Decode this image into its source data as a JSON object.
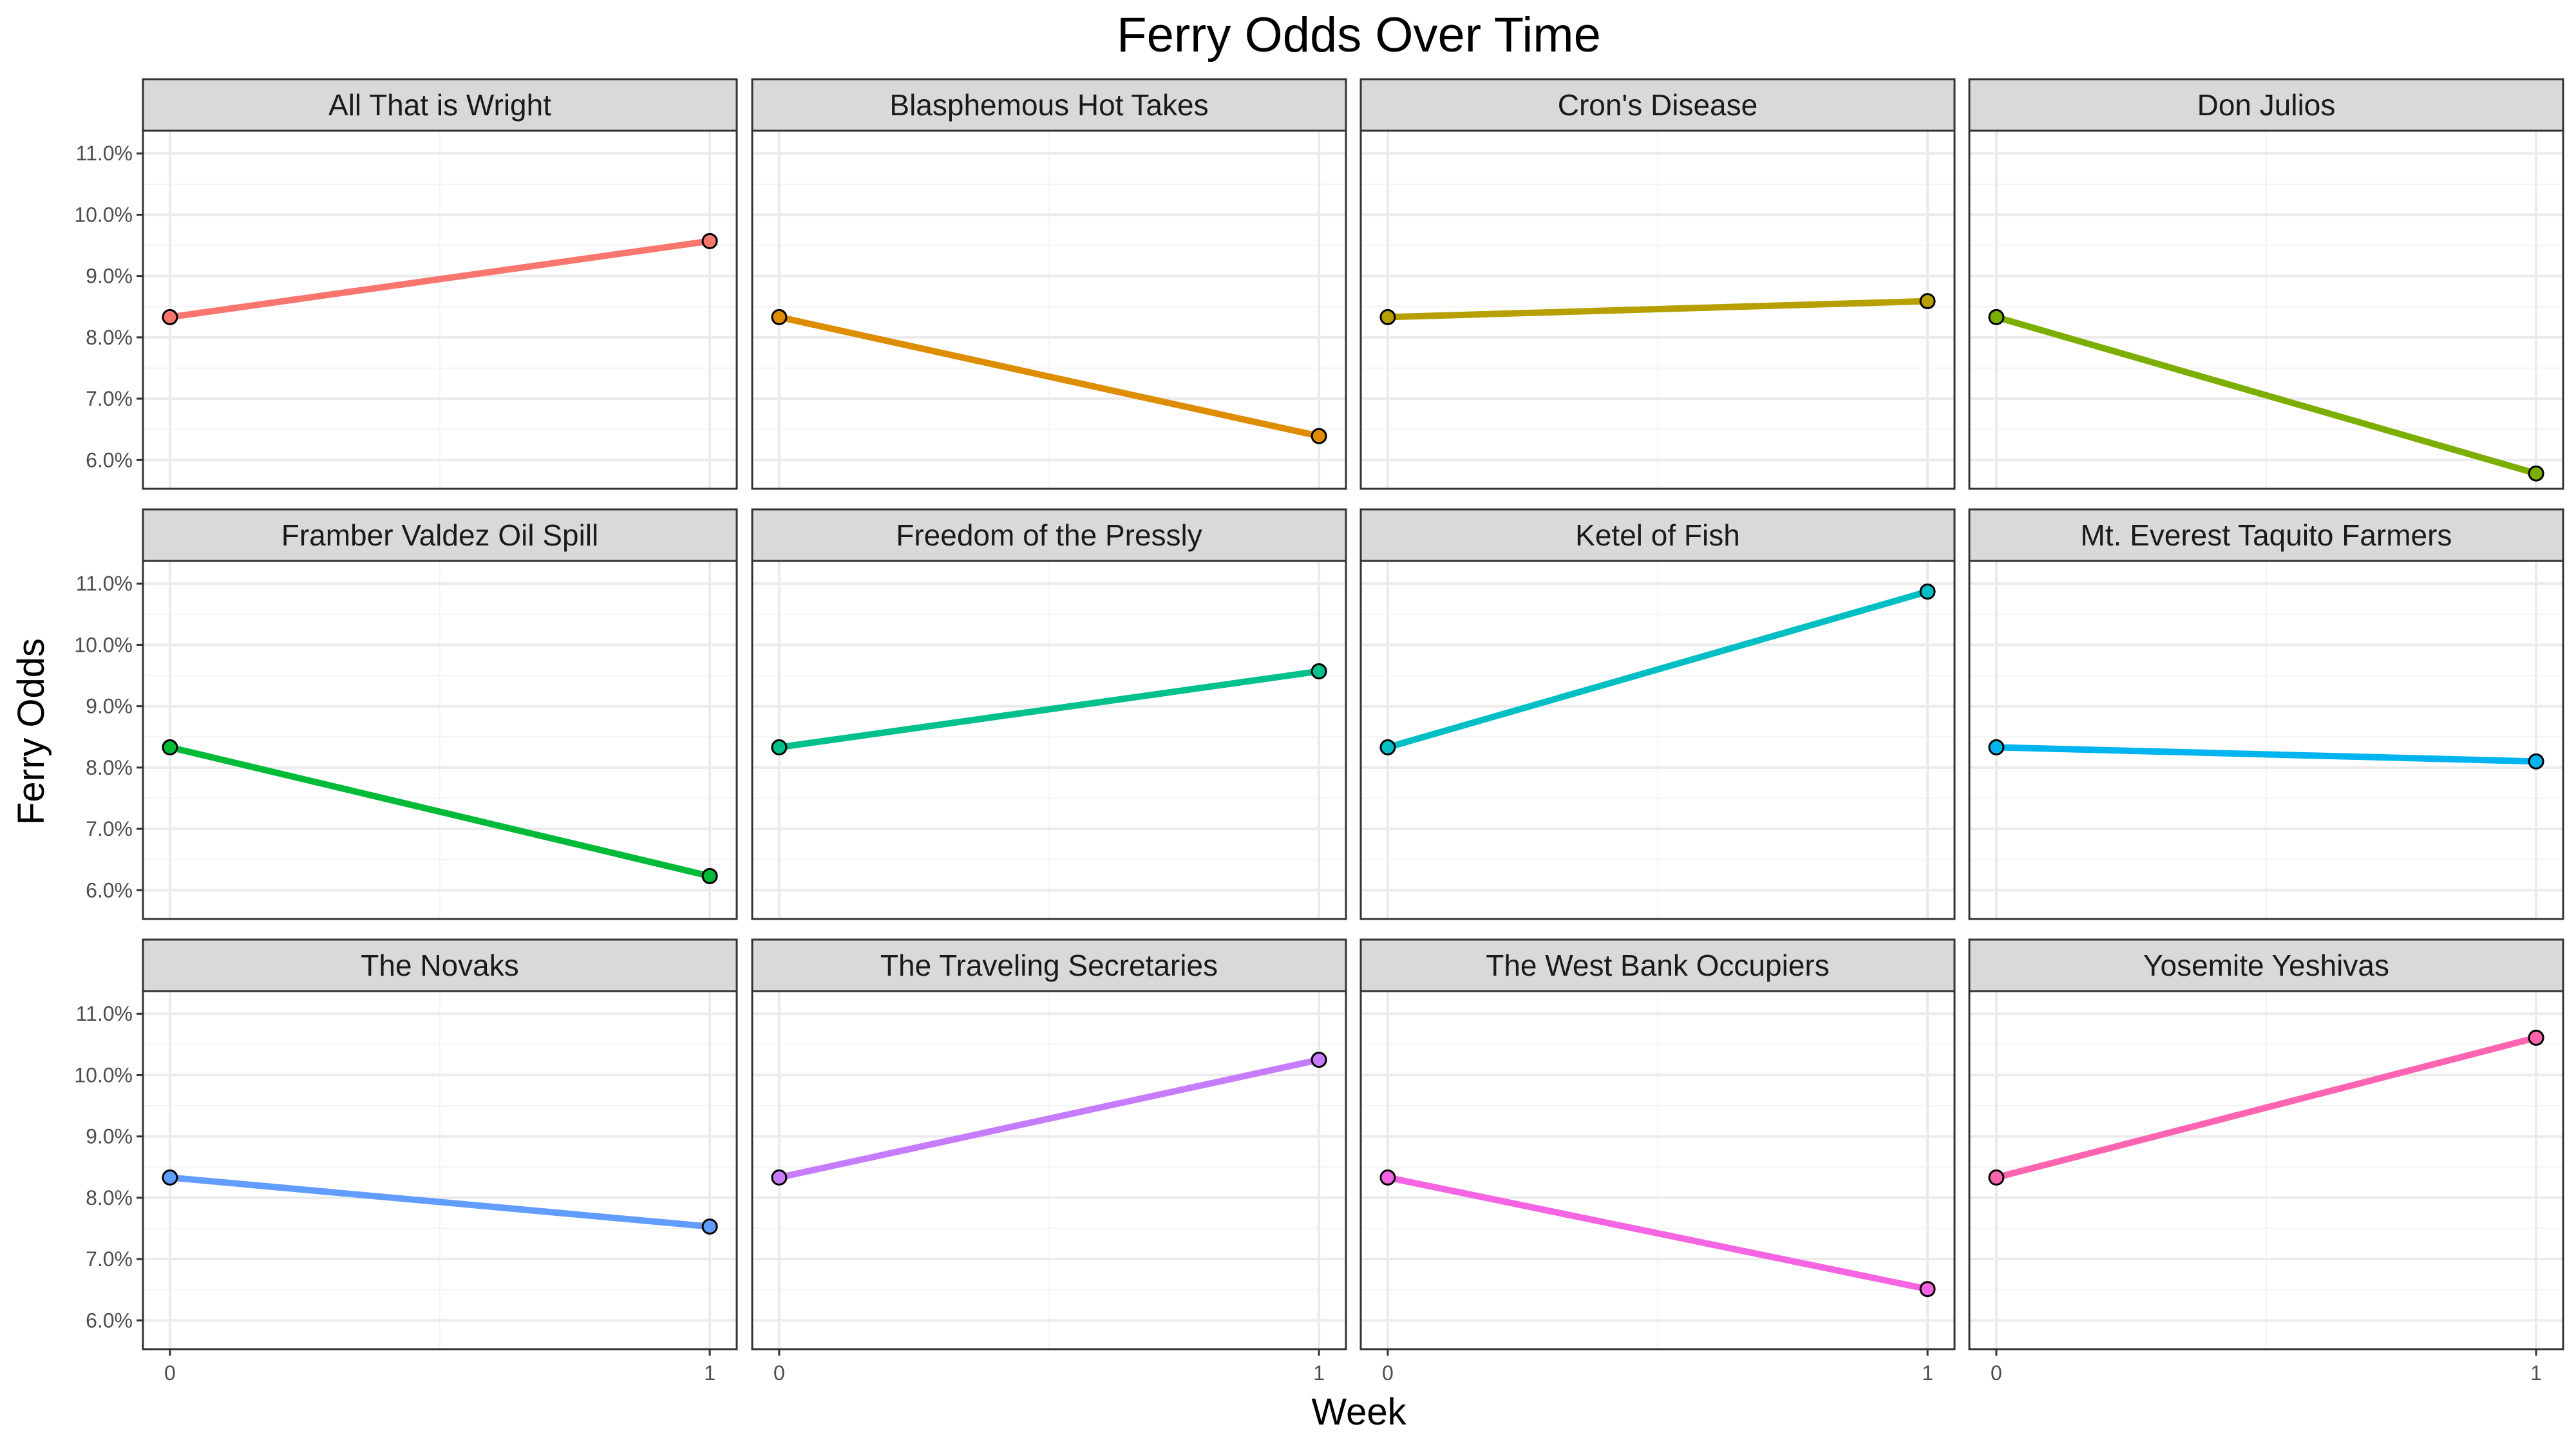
{
  "chart_data": {
    "type": "line",
    "title": "Ferry Odds Over Time",
    "xlabel": "Week",
    "ylabel": "Ferry Odds",
    "x": [
      0,
      1
    ],
    "xticks": [
      0,
      1
    ],
    "xlim": [
      -0.05,
      1.05
    ],
    "yticks": [
      0.06,
      0.07,
      0.08,
      0.09,
      0.1,
      0.11
    ],
    "ytick_labels": [
      "6.0%",
      "7.0%",
      "8.0%",
      "9.0%",
      "10.0%",
      "11.0%"
    ],
    "ylim": [
      0.0553,
      0.1137
    ],
    "grid": true,
    "legend": "none",
    "facet_layout": {
      "rows": 3,
      "cols": 4
    },
    "series": [
      {
        "name": "All That is Wright",
        "values": [
          0.0833,
          0.0957
        ],
        "color": "#F8766D"
      },
      {
        "name": "Blasphemous Hot Takes",
        "values": [
          0.0833,
          0.0639
        ],
        "color": "#DE8C00"
      },
      {
        "name": "Cron's Disease",
        "values": [
          0.0833,
          0.0859
        ],
        "color": "#B79F00"
      },
      {
        "name": "Don Julios",
        "values": [
          0.0833,
          0.0578
        ],
        "color": "#7CAE00"
      },
      {
        "name": "Framber Valdez Oil Spill",
        "values": [
          0.0833,
          0.0623
        ],
        "color": "#00BA38"
      },
      {
        "name": "Freedom of the Pressly",
        "values": [
          0.0833,
          0.0957
        ],
        "color": "#00C08B"
      },
      {
        "name": "Ketel of Fish",
        "values": [
          0.0833,
          0.1087
        ],
        "color": "#00BFC4"
      },
      {
        "name": "Mt. Everest Taquito Farmers",
        "values": [
          0.0833,
          0.081
        ],
        "color": "#00B4F0"
      },
      {
        "name": "The Novaks",
        "values": [
          0.0833,
          0.0753
        ],
        "color": "#619CFF"
      },
      {
        "name": "The Traveling Secretaries",
        "values": [
          0.0833,
          0.1025
        ],
        "color": "#C77CFF"
      },
      {
        "name": "The West Bank Occupiers",
        "values": [
          0.0833,
          0.0651
        ],
        "color": "#F564E3"
      },
      {
        "name": "Yosemite Yeshivas",
        "values": [
          0.0833,
          0.1061
        ],
        "color": "#FF64B0"
      }
    ]
  }
}
